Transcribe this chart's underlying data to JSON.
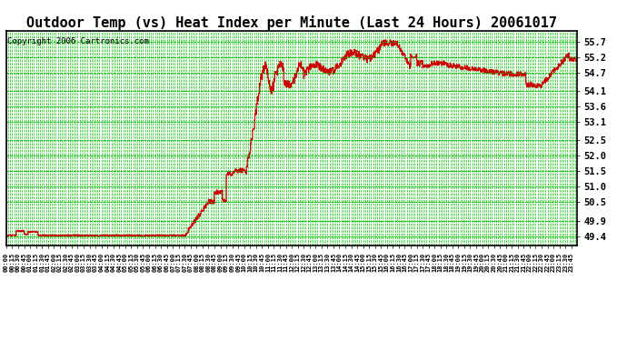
{
  "title": "Outdoor Temp (vs) Heat Index per Minute (Last 24 Hours) 20061017",
  "copyright": "Copyright 2006 Cartronics.com",
  "yticks": [
    49.4,
    49.9,
    50.5,
    51.0,
    51.5,
    52.0,
    52.5,
    53.1,
    53.6,
    54.1,
    54.7,
    55.2,
    55.7
  ],
  "ymin": 49.1,
  "ymax": 56.05,
  "background_color": "#ffffff",
  "plot_bg_color": "#ffffff",
  "grid_color": "#00bb00",
  "line_color": "#cc0000",
  "title_fontsize": 11,
  "copyright_fontsize": 6.5
}
